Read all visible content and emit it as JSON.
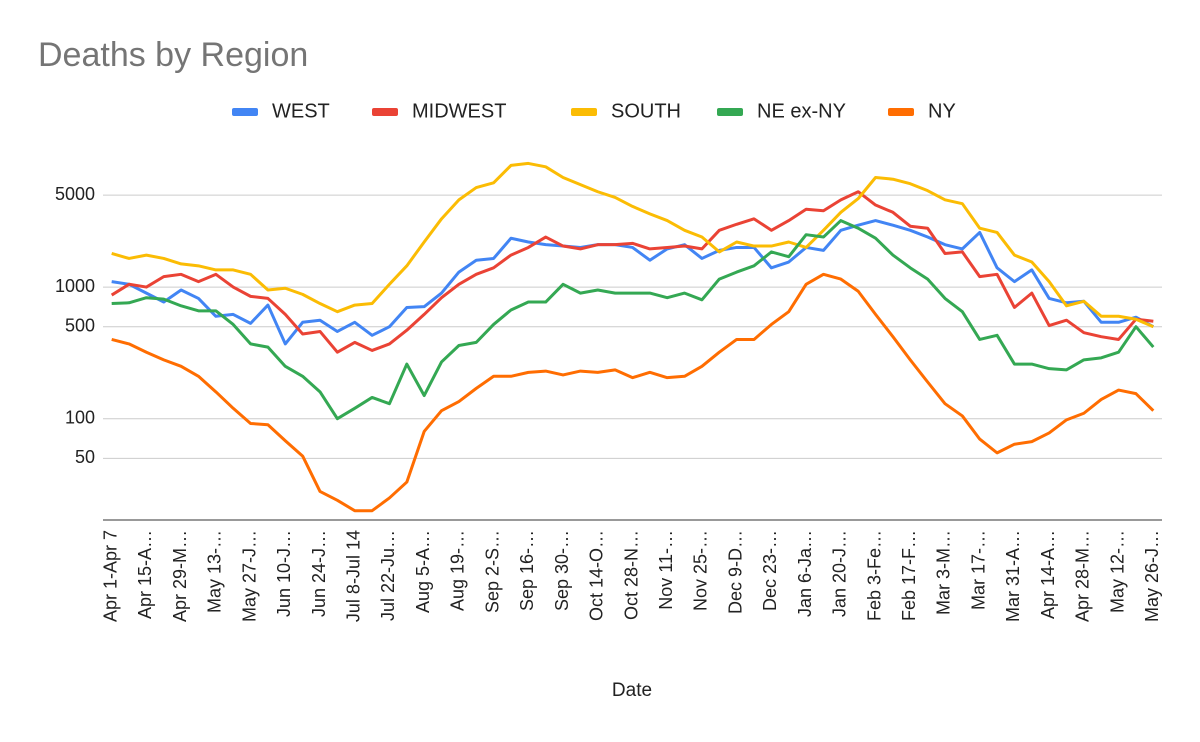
{
  "chart_data": {
    "type": "line",
    "title": "Deaths by Region",
    "x_label": "Date",
    "log_y": true,
    "grid": true,
    "legend": "top",
    "categories": [
      "Apr 1-Apr 7",
      null,
      "Apr 15-A…",
      null,
      "Apr 29-M…",
      null,
      "May 13-…",
      null,
      "May 27-J…",
      null,
      "Jun 10-J…",
      null,
      "Jun 24-J…",
      null,
      "Jul 8-Jul 14",
      null,
      "Jul 22-Ju…",
      null,
      "Aug 5-A…",
      null,
      "Aug 19-…",
      null,
      "Sep 2-S…",
      null,
      "Sep 16-…",
      null,
      "Sep 30-…",
      null,
      "Oct 14-O…",
      null,
      "Oct 28-N…",
      null,
      "Nov 11-…",
      null,
      "Nov 25-…",
      null,
      "Dec 9-D…",
      null,
      "Dec 23-…",
      null,
      "Jan 6-Ja…",
      null,
      "Jan 20-J…",
      null,
      "Feb 3-Fe…",
      null,
      "Feb 17-F…",
      null,
      "Mar 3-M…",
      null,
      "Mar 17-…",
      null,
      "Mar 31-A…",
      null,
      "Apr 14-A…",
      null,
      "Apr 28-M…",
      null,
      "May 12-…",
      null,
      "May 26-J…"
    ],
    "ylim": [
      17,
      11000
    ],
    "yticks": [
      50,
      100,
      500,
      1000,
      5000
    ],
    "series": [
      {
        "name": "WEST",
        "color": "#4285f4",
        "values": [
          1100,
          1050,
          900,
          770,
          950,
          820,
          600,
          620,
          530,
          730,
          370,
          540,
          560,
          460,
          540,
          430,
          500,
          700,
          710,
          900,
          1300,
          1600,
          1650,
          2350,
          2200,
          2100,
          2050,
          2000,
          2100,
          2100,
          2000,
          1600,
          1950,
          2100,
          1650,
          1900,
          2000,
          2000,
          1400,
          1550,
          2000,
          1900,
          2700,
          2950,
          3200,
          2950,
          2700,
          2400,
          2100,
          1950,
          2600,
          1400,
          1100,
          1350,
          820,
          760,
          780,
          540,
          540,
          590,
          500
        ]
      },
      {
        "name": "MIDWEST",
        "color": "#ea4335",
        "values": [
          870,
          1050,
          1000,
          1200,
          1250,
          1100,
          1250,
          1000,
          850,
          820,
          620,
          440,
          460,
          320,
          380,
          330,
          370,
          470,
          620,
          830,
          1050,
          1250,
          1400,
          1750,
          2000,
          2400,
          2050,
          1950,
          2100,
          2100,
          2150,
          1950,
          2000,
          2050,
          1950,
          2700,
          3000,
          3300,
          2700,
          3200,
          3900,
          3800,
          4600,
          5300,
          4200,
          3700,
          2900,
          2800,
          1800,
          1850,
          1200,
          1250,
          700,
          900,
          510,
          560,
          450,
          420,
          400,
          570,
          550
        ]
      },
      {
        "name": "SOUTH",
        "color": "#fbbc04",
        "values": [
          1800,
          1650,
          1750,
          1650,
          1500,
          1450,
          1350,
          1350,
          1250,
          950,
          980,
          880,
          750,
          650,
          730,
          750,
          1050,
          1450,
          2200,
          3300,
          4600,
          5700,
          6200,
          8400,
          8700,
          8200,
          6800,
          6000,
          5300,
          4800,
          4100,
          3600,
          3200,
          2700,
          2400,
          1850,
          2200,
          2050,
          2050,
          2200,
          2000,
          2700,
          3700,
          4700,
          6800,
          6600,
          6100,
          5400,
          4600,
          4300,
          2800,
          2600,
          1750,
          1550,
          1100,
          720,
          780,
          600,
          600,
          570,
          500
        ]
      },
      {
        "name": "NE ex-NY",
        "color": "#34a853",
        "values": [
          750,
          760,
          830,
          810,
          720,
          660,
          660,
          520,
          370,
          350,
          250,
          210,
          160,
          100,
          120,
          145,
          130,
          260,
          150,
          270,
          360,
          380,
          520,
          670,
          770,
          770,
          1050,
          900,
          950,
          900,
          900,
          900,
          830,
          900,
          800,
          1150,
          1300,
          1450,
          1850,
          1700,
          2500,
          2400,
          3200,
          2800,
          2350,
          1750,
          1400,
          1150,
          820,
          650,
          400,
          430,
          260,
          260,
          240,
          235,
          280,
          290,
          320,
          500,
          350
        ]
      },
      {
        "name": "NY",
        "color": "#ff6d01",
        "values": [
          400,
          370,
          320,
          280,
          250,
          210,
          160,
          120,
          92,
          90,
          68,
          52,
          28,
          24,
          20,
          20,
          25,
          33,
          80,
          115,
          135,
          170,
          210,
          210,
          225,
          230,
          215,
          230,
          225,
          235,
          205,
          225,
          205,
          210,
          250,
          320,
          400,
          400,
          520,
          650,
          1050,
          1250,
          1150,
          930,
          620,
          420,
          280,
          190,
          130,
          105,
          70,
          55,
          64,
          67,
          78,
          98,
          110,
          140,
          165,
          155,
          115
        ]
      }
    ]
  }
}
